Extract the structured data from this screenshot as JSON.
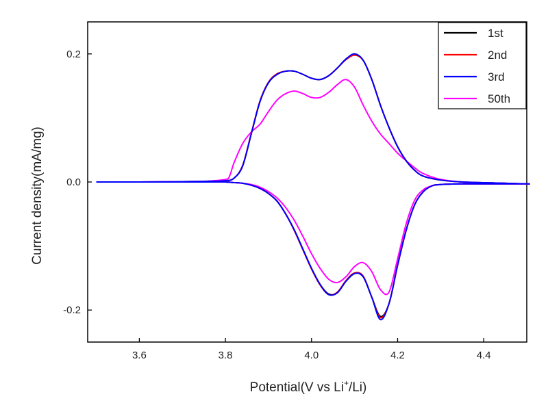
{
  "chart_data": {
    "type": "line",
    "xlabel": "Potential(V vs Li",
    "xlabel_sup": "+",
    "xlabel_tail": "/Li)",
    "ylabel": "Current density(mA/mg)",
    "xlim": [
      3.48,
      4.5
    ],
    "ylim": [
      -0.25,
      0.25
    ],
    "x_ticks": [
      3.6,
      3.8,
      4.0,
      4.2,
      4.4
    ],
    "x_tick_labels": [
      "3.6",
      "3.8",
      "4.0",
      "4.2",
      "4.4"
    ],
    "y_ticks": [
      -0.2,
      0.0,
      0.2
    ],
    "y_tick_labels": [
      "-0.2",
      "0.0",
      "0.2"
    ],
    "grid": false,
    "legend_position": "top-right",
    "series": [
      {
        "name": "1st",
        "color": "#000000",
        "x": [
          3.5,
          3.6,
          3.7,
          3.75,
          3.8,
          3.82,
          3.84,
          3.86,
          3.88,
          3.9,
          3.92,
          3.94,
          3.96,
          3.98,
          4.0,
          4.02,
          4.04,
          4.06,
          4.08,
          4.1,
          4.12,
          4.14,
          4.16,
          4.18,
          4.2,
          4.22,
          4.24,
          4.26,
          4.3,
          4.35,
          4.4,
          4.45,
          4.5,
          4.5,
          4.45,
          4.4,
          4.35,
          4.3,
          4.28,
          4.26,
          4.24,
          4.22,
          4.2,
          4.18,
          4.16,
          4.14,
          4.12,
          4.1,
          4.08,
          4.06,
          4.04,
          4.02,
          4.0,
          3.98,
          3.96,
          3.94,
          3.92,
          3.9,
          3.88,
          3.86,
          3.84,
          3.82,
          3.8,
          3.75,
          3.7,
          3.6,
          3.5
        ],
        "y": [
          0.0,
          0.0,
          0.0005,
          0.001,
          0.002,
          0.006,
          0.025,
          0.075,
          0.125,
          0.155,
          0.168,
          0.173,
          0.173,
          0.168,
          0.162,
          0.16,
          0.166,
          0.178,
          0.192,
          0.199,
          0.19,
          0.16,
          0.12,
          0.085,
          0.055,
          0.033,
          0.018,
          0.009,
          0.003,
          0.0,
          -0.001,
          -0.002,
          -0.003,
          -0.003,
          -0.003,
          -0.003,
          -0.003,
          -0.004,
          -0.006,
          -0.015,
          -0.035,
          -0.075,
          -0.13,
          -0.19,
          -0.21,
          -0.18,
          -0.148,
          -0.143,
          -0.155,
          -0.173,
          -0.175,
          -0.16,
          -0.135,
          -0.105,
          -0.075,
          -0.05,
          -0.03,
          -0.018,
          -0.01,
          -0.005,
          -0.002,
          -0.001,
          0.0,
          0.0,
          0.0,
          0.0,
          0.0
        ]
      },
      {
        "name": "2nd",
        "color": "#ff0000",
        "x": [
          3.5,
          3.6,
          3.7,
          3.75,
          3.8,
          3.82,
          3.84,
          3.86,
          3.88,
          3.9,
          3.92,
          3.94,
          3.96,
          3.98,
          4.0,
          4.02,
          4.04,
          4.06,
          4.08,
          4.1,
          4.12,
          4.14,
          4.16,
          4.18,
          4.2,
          4.22,
          4.24,
          4.26,
          4.3,
          4.35,
          4.4,
          4.45,
          4.5,
          4.5,
          4.45,
          4.4,
          4.35,
          4.3,
          4.28,
          4.26,
          4.24,
          4.22,
          4.2,
          4.18,
          4.16,
          4.14,
          4.12,
          4.1,
          4.08,
          4.06,
          4.04,
          4.02,
          4.0,
          3.98,
          3.96,
          3.94,
          3.92,
          3.9,
          3.88,
          3.86,
          3.84,
          3.82,
          3.8,
          3.75,
          3.7,
          3.6,
          3.5
        ],
        "y": [
          0.0,
          0.0,
          0.0005,
          0.001,
          0.002,
          0.006,
          0.026,
          0.076,
          0.126,
          0.156,
          0.169,
          0.173,
          0.173,
          0.168,
          0.162,
          0.16,
          0.166,
          0.178,
          0.191,
          0.198,
          0.19,
          0.16,
          0.12,
          0.085,
          0.055,
          0.033,
          0.018,
          0.009,
          0.003,
          0.0,
          -0.001,
          -0.002,
          -0.003,
          -0.003,
          -0.003,
          -0.003,
          -0.003,
          -0.004,
          -0.006,
          -0.015,
          -0.035,
          -0.075,
          -0.13,
          -0.19,
          -0.212,
          -0.18,
          -0.147,
          -0.142,
          -0.154,
          -0.172,
          -0.176,
          -0.161,
          -0.136,
          -0.106,
          -0.076,
          -0.05,
          -0.03,
          -0.018,
          -0.01,
          -0.005,
          -0.002,
          -0.001,
          0.0,
          0.0,
          0.0,
          0.0,
          0.0
        ]
      },
      {
        "name": "3rd",
        "color": "#0000ff",
        "x": [
          3.5,
          3.6,
          3.7,
          3.75,
          3.8,
          3.82,
          3.84,
          3.86,
          3.88,
          3.9,
          3.92,
          3.94,
          3.96,
          3.98,
          4.0,
          4.02,
          4.04,
          4.06,
          4.08,
          4.1,
          4.12,
          4.14,
          4.16,
          4.18,
          4.2,
          4.22,
          4.24,
          4.26,
          4.3,
          4.35,
          4.4,
          4.45,
          4.5,
          4.5,
          4.45,
          4.4,
          4.35,
          4.3,
          4.28,
          4.26,
          4.24,
          4.22,
          4.2,
          4.18,
          4.16,
          4.14,
          4.12,
          4.1,
          4.08,
          4.06,
          4.04,
          4.02,
          4.0,
          3.98,
          3.96,
          3.94,
          3.92,
          3.9,
          3.88,
          3.86,
          3.84,
          3.82,
          3.8,
          3.75,
          3.7,
          3.6,
          3.5
        ],
        "y": [
          0.0,
          0.0,
          0.0005,
          0.001,
          0.002,
          0.006,
          0.025,
          0.075,
          0.125,
          0.155,
          0.168,
          0.173,
          0.173,
          0.168,
          0.162,
          0.16,
          0.166,
          0.178,
          0.192,
          0.2,
          0.19,
          0.16,
          0.12,
          0.085,
          0.055,
          0.033,
          0.018,
          0.009,
          0.003,
          0.0,
          -0.001,
          -0.002,
          -0.003,
          -0.003,
          -0.003,
          -0.003,
          -0.003,
          -0.004,
          -0.006,
          -0.015,
          -0.035,
          -0.075,
          -0.13,
          -0.19,
          -0.215,
          -0.18,
          -0.148,
          -0.143,
          -0.155,
          -0.173,
          -0.176,
          -0.16,
          -0.135,
          -0.105,
          -0.075,
          -0.05,
          -0.03,
          -0.018,
          -0.01,
          -0.005,
          -0.002,
          -0.001,
          0.0,
          0.0,
          0.0,
          0.0,
          0.0
        ]
      },
      {
        "name": "50th",
        "color": "#ff00ff",
        "x": [
          3.5,
          3.6,
          3.7,
          3.75,
          3.8,
          3.81,
          3.82,
          3.84,
          3.86,
          3.88,
          3.9,
          3.92,
          3.94,
          3.96,
          3.98,
          4.0,
          4.02,
          4.04,
          4.06,
          4.08,
          4.1,
          4.12,
          4.14,
          4.16,
          4.18,
          4.2,
          4.22,
          4.24,
          4.26,
          4.3,
          4.35,
          4.4,
          4.45,
          4.5,
          4.5,
          4.45,
          4.4,
          4.35,
          4.3,
          4.28,
          4.26,
          4.24,
          4.22,
          4.2,
          4.18,
          4.16,
          4.14,
          4.12,
          4.1,
          4.08,
          4.06,
          4.04,
          4.02,
          4.0,
          3.98,
          3.96,
          3.94,
          3.92,
          3.9,
          3.88,
          3.86,
          3.84,
          3.82,
          3.8,
          3.75,
          3.7,
          3.6,
          3.5
        ],
        "y": [
          0.0,
          0.0,
          0.0005,
          0.001,
          0.004,
          0.01,
          0.03,
          0.06,
          0.078,
          0.09,
          0.11,
          0.128,
          0.138,
          0.142,
          0.138,
          0.132,
          0.132,
          0.14,
          0.152,
          0.16,
          0.148,
          0.12,
          0.095,
          0.075,
          0.06,
          0.045,
          0.033,
          0.022,
          0.013,
          0.004,
          0.0,
          -0.001,
          -0.002,
          -0.003,
          -0.003,
          -0.003,
          -0.003,
          -0.003,
          -0.004,
          -0.006,
          -0.012,
          -0.028,
          -0.065,
          -0.12,
          -0.172,
          -0.168,
          -0.14,
          -0.126,
          -0.132,
          -0.148,
          -0.157,
          -0.152,
          -0.135,
          -0.112,
          -0.085,
          -0.06,
          -0.04,
          -0.025,
          -0.015,
          -0.008,
          -0.004,
          -0.002,
          -0.001,
          0.0,
          0.0,
          0.0,
          0.0,
          0.0
        ]
      }
    ]
  }
}
